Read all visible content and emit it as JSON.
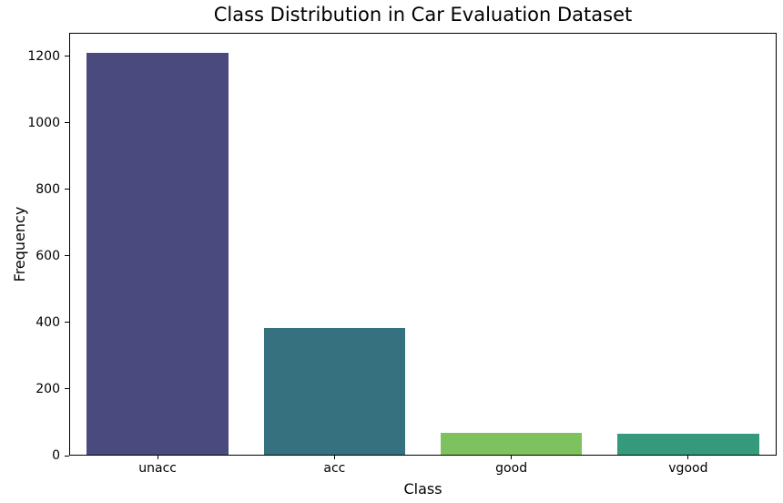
{
  "chart_data": {
    "type": "bar",
    "title": "Class Distribution in Car Evaluation Dataset",
    "xlabel": "Class",
    "ylabel": "Frequency",
    "categories": [
      "unacc",
      "acc",
      "good",
      "vgood"
    ],
    "values": [
      1210,
      384,
      69,
      65
    ],
    "bar_colors": [
      "#4b4a7e",
      "#35717f",
      "#7dc25f",
      "#35997b"
    ],
    "ylim": [
      0,
      1270
    ],
    "yticks": [
      0,
      200,
      400,
      600,
      800,
      1000,
      1200
    ],
    "grid": false,
    "legend_position": "none",
    "spine_color": "#000000",
    "background_color": "#ffffff"
  }
}
